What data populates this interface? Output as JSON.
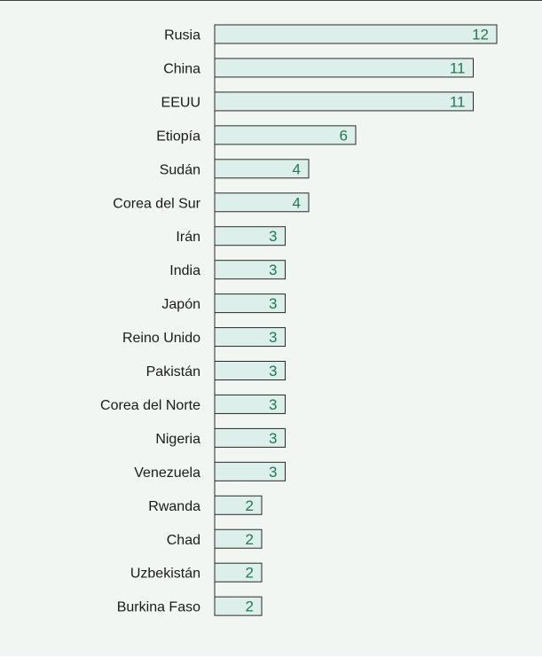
{
  "chart_data": {
    "type": "bar",
    "orientation": "horizontal",
    "categories": [
      "Rusia",
      "China",
      "EEUU",
      "Etiopía",
      "Sudán",
      "Corea del Sur",
      "Irán",
      "India",
      "Japón",
      "Reino Unido",
      "Pakistán",
      "Corea del Norte",
      "Nigeria",
      "Venezuela",
      "Rwanda",
      "Chad",
      "Uzbekistán",
      "Burkina Faso"
    ],
    "values": [
      12,
      11,
      11,
      6,
      4,
      4,
      3,
      3,
      3,
      3,
      3,
      3,
      3,
      3,
      2,
      2,
      2,
      2
    ],
    "xlim": [
      0,
      12
    ],
    "grid": false,
    "colors": {
      "panel_background": "#f2f6f3",
      "bar_fill": "#dcefea",
      "bar_stroke": "#2a2a2a",
      "value_text": "#1e7a52"
    }
  }
}
